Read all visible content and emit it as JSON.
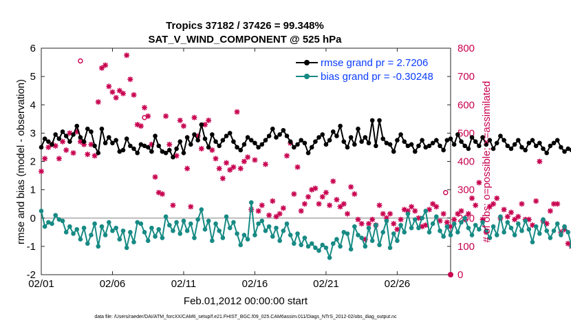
{
  "chart_data": {
    "type": "line",
    "title_line1": "Tropics 37182 / 37426 = 99.348%",
    "title_line2": "SAT_V_WIND_COMPONENT @ 525 hPa",
    "xlabel": "Feb.01,2012 00:00:00 start",
    "ylabel_left": "rmse and bias (model - observation)",
    "ylabel_right": "# of obs: o=possible; ×=assimilated",
    "footnote": "data file: /Users/raeder/DAI/ATM_forcXX/CAM6_setup/f.e21.FHIST_BGC.f09_025.CAM6assim.011/Diags_NTrS_2012-02/obs_diag_output.nc",
    "x_ticks": [
      "02/01",
      "02/06",
      "02/11",
      "02/16",
      "02/21",
      "02/26"
    ],
    "x_tick_days": [
      0,
      5,
      10,
      15,
      20,
      25
    ],
    "xlim": [
      0,
      28.75
    ],
    "ylim_left": [
      -2,
      6
    ],
    "y_ticks_left": [
      "-2",
      "-1",
      "0",
      "1",
      "2",
      "3",
      "4",
      "5",
      "6"
    ],
    "ylim_right": [
      0,
      800
    ],
    "y_ticks_right": [
      "0",
      "100",
      "200",
      "300",
      "400",
      "500",
      "600",
      "700",
      "800"
    ],
    "zero_line": 0,
    "legend": {
      "rmse": "rmse grand pr = 2.7206",
      "bias": "bias grand pr = -0.30248"
    },
    "colors": {
      "rmse": "#000000",
      "bias": "#178a84",
      "obs": "#c8004f",
      "legend_text": "#0a3cff",
      "zero_line": "#aaaaaa"
    },
    "time_step_days": 0.25,
    "series": [
      {
        "name": "rmse",
        "values": [
          2.5,
          2.8,
          2.7,
          2.6,
          2.95,
          2.8,
          3.05,
          2.9,
          2.7,
          2.95,
          3.25,
          2.85,
          2.7,
          3.15,
          3.05,
          2.55,
          2.3,
          3.15,
          2.65,
          2.85,
          2.65,
          2.75,
          2.35,
          2.4,
          2.8,
          2.55,
          2.45,
          2.3,
          2.6,
          2.55,
          2.5,
          2.35,
          2.9,
          2.55,
          2.35,
          2.3,
          2.4,
          2.15,
          2.45,
          2.7,
          2.3,
          2.85,
          2.6,
          2.95,
          2.75,
          3.3,
          2.8,
          2.5,
          2.95,
          2.7,
          2.55,
          2.75,
          2.9,
          3.0,
          2.7,
          2.5,
          2.4,
          2.6,
          2.85,
          2.75,
          2.65,
          2.5,
          2.6,
          2.75,
          2.9,
          3.15,
          2.85,
          2.95,
          3.1,
          2.9,
          2.7,
          2.5,
          2.6,
          2.75,
          2.65,
          2.3,
          2.5,
          2.7,
          2.85,
          2.95,
          2.6,
          2.75,
          3.05,
          2.9,
          3.25,
          2.7,
          2.5,
          2.85,
          2.6,
          3.15,
          2.7,
          2.85,
          2.65,
          3.45,
          2.55,
          3.45,
          2.8,
          2.65,
          2.6,
          2.35,
          2.75,
          2.95,
          2.7,
          2.55,
          2.6,
          2.35,
          2.55,
          2.75,
          2.5,
          2.55,
          2.65,
          2.75,
          2.55,
          2.4,
          2.75,
          2.8,
          2.6,
          2.95,
          2.7,
          2.55,
          2.45,
          2.85,
          2.7,
          2.55,
          2.85,
          2.6,
          2.75,
          2.45,
          2.65,
          2.9,
          2.75,
          2.55,
          2.45,
          2.6,
          2.75,
          2.5,
          2.4,
          2.65,
          2.75,
          2.55,
          2.65,
          2.45,
          2.3,
          2.55,
          2.65,
          2.75,
          2.5,
          2.35,
          2.45,
          2.4,
          2.6,
          2.45,
          2.3,
          2.5,
          2.45,
          2.6,
          2.8,
          2.5,
          2.6,
          2.45,
          2.7,
          2.55,
          2.6,
          2.75,
          2.45,
          2.5,
          2.3,
          2.65,
          2.4,
          2.5,
          2.45,
          2.85,
          2.6,
          2.6,
          2.65,
          2.55,
          2.7,
          2.55,
          2.6,
          2.55,
          2.7,
          2.65,
          2.55,
          3.1,
          3.1
        ]
      },
      {
        "name": "bias",
        "values": [
          0.25,
          -0.3,
          -0.15,
          -0.2,
          0.1,
          -0.05,
          -0.1,
          -0.5,
          -0.3,
          -0.55,
          -0.4,
          -0.75,
          -0.35,
          -0.9,
          -0.6,
          -0.2,
          -1.0,
          -0.3,
          -0.6,
          -0.15,
          -0.45,
          -0.35,
          -0.75,
          -0.45,
          -1.05,
          -0.5,
          -0.85,
          -0.15,
          -0.2,
          -0.5,
          -0.8,
          -0.35,
          -0.65,
          -0.4,
          -0.7,
          0.05,
          -0.25,
          -0.45,
          -0.15,
          -0.55,
          -0.1,
          -0.45,
          -0.2,
          -0.7,
          -0.05,
          0.3,
          -0.4,
          -0.1,
          -0.8,
          -0.2,
          -0.45,
          -0.7,
          0.05,
          -0.35,
          -0.15,
          -0.55,
          -0.95,
          -0.6,
          -0.75,
          0.55,
          -0.6,
          -0.2,
          -0.1,
          -0.45,
          -0.3,
          -0.65,
          -0.35,
          -0.8,
          -0.45,
          -0.2,
          -0.6,
          -0.9,
          -0.55,
          -0.95,
          -0.7,
          -1.0,
          -0.9,
          -1.05,
          -1.15,
          -0.95,
          -1.05,
          -1.4,
          -0.9,
          -0.75,
          -1.0,
          -0.5,
          -0.55,
          -1.1,
          -0.3,
          -0.6,
          -0.7,
          -1.0,
          -0.35,
          -0.8,
          -0.25,
          -0.95,
          -0.5,
          -0.1,
          -1.05,
          -0.55,
          -0.8,
          -0.25,
          -0.5,
          0.15,
          -0.35,
          -0.05,
          -0.35,
          0.0,
          0.25,
          -0.5,
          -0.2,
          0.05,
          -0.45,
          -0.65,
          -0.3,
          -0.6,
          -0.2,
          -0.5,
          -0.15,
          0.0,
          -0.35,
          -0.6,
          -0.25,
          -0.4,
          -0.15,
          -0.45,
          -0.7,
          -0.3,
          -0.6,
          0.05,
          -0.5,
          -0.15,
          -0.35,
          -0.6,
          -0.2,
          -0.45,
          -0.1,
          -0.4,
          -0.85,
          -0.3,
          -0.55,
          -0.05,
          -0.45,
          -0.7,
          -0.45,
          -0.2,
          -0.6,
          -0.3,
          -0.5,
          -1.0,
          -0.4,
          -0.75,
          -0.2,
          -0.55,
          -0.3,
          -0.5,
          -0.85,
          -0.35,
          -0.55,
          0.0,
          -0.5,
          -0.1,
          -0.35,
          -0.6,
          -0.2,
          0.05,
          -0.3,
          0.85,
          0.2,
          1.0,
          -0.1,
          0.05,
          -0.05,
          0.45,
          0.6,
          0.15,
          -0.25,
          -0.1,
          -0.35
        ]
      },
      {
        "name": "obs_assimilated",
        "values": [
          365,
          410,
          450,
          460,
          455,
          410,
          470,
          440,
          500,
          430,
          505,
          470,
          460,
          425,
          460,
          420,
          610,
          730,
          740,
          665,
          645,
          625,
          650,
          640,
          775,
          690,
          635,
          530,
          525,
          590,
          560,
          460,
          345,
          290,
          285,
          560,
          460,
          245,
          420,
          545,
          525,
          375,
          240,
          555,
          490,
          445,
          530,
          545,
          440,
          410,
          375,
          340,
          395,
          370,
          380,
          575,
          375,
          400,
          415,
          230,
          405,
          225,
          245,
          390,
          210,
          260,
          205,
          215,
          235,
          420,
          465,
          285,
          380,
          225,
          250,
          275,
          300,
          305,
          250,
          275,
          290,
          245,
          330,
          265,
          240,
          250,
          215,
          310,
          285,
          195,
          180,
          125,
          180,
          195,
          175,
          245,
          215,
          200,
          215,
          180,
          160,
          195,
          230,
          225,
          240,
          225,
          200,
          170,
          175,
          230,
          250,
          240,
          190,
          215,
          185,
          170,
          195,
          215,
          225,
          195,
          215,
          270,
          245,
          325,
          195,
          150,
          240,
          250,
          270,
          200,
          230,
          205,
          220,
          195,
          205,
          250,
          195,
          195,
          175,
          260,
          400,
          190,
          180,
          225,
          250,
          250,
          150,
          160,
          110,
          100,
          115,
          145,
          155,
          180,
          170,
          195,
          205,
          135,
          155,
          185,
          200,
          265,
          275,
          250,
          230,
          215,
          240,
          280,
          285,
          270,
          265,
          255,
          355,
          285,
          260,
          265,
          200,
          290,
          275,
          275,
          255
        ]
      },
      {
        "name": "obs_possible",
        "values": [
          {
            "day": 2.75,
            "value": 755
          },
          {
            "day": 7.25,
            "value": 555
          },
          {
            "day": 28.4,
            "value": 290
          }
        ]
      }
    ],
    "last_point": {
      "day": 28.75,
      "value": 0
    }
  }
}
